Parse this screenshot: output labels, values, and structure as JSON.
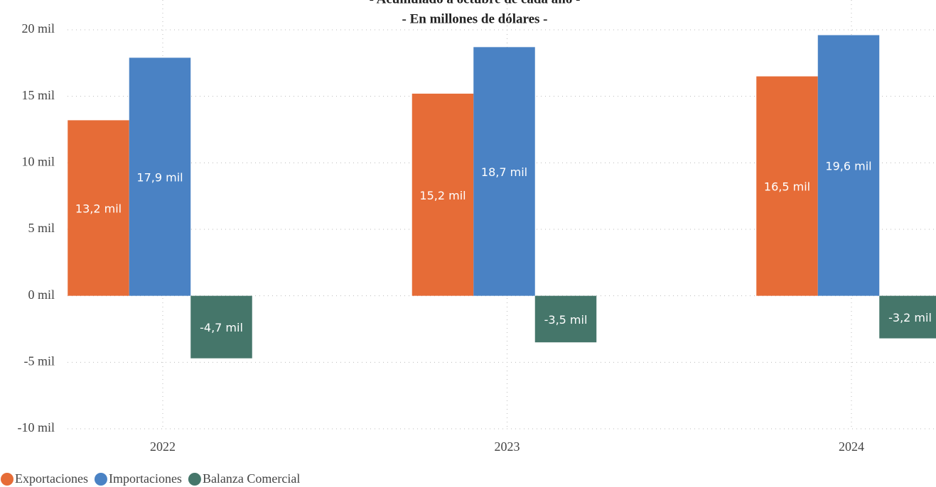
{
  "chart_data": {
    "type": "bar",
    "title": "- Acumulado a octubre de cada año -",
    "subtitle": "- En millones de dólares -",
    "categories": [
      "2022",
      "2023",
      "2024"
    ],
    "series": [
      {
        "name": "Exportaciones",
        "color": "#E66C37",
        "values": [
          13200,
          15200,
          16500
        ],
        "value_labels": [
          "13,2 mil",
          "15,2 mil",
          "16,5 mil"
        ]
      },
      {
        "name": "Importaciones",
        "color": "#4A82C4",
        "values": [
          17900,
          18700,
          19600
        ],
        "value_labels": [
          "17,9 mil",
          "18,7 mil",
          "19,6 mil"
        ]
      },
      {
        "name": "Balanza Comercial",
        "color": "#45766A",
        "values": [
          -4700,
          -3500,
          -3200
        ],
        "value_labels": [
          "-4,7 mil",
          "-3,5 mil",
          "-3,2 mil"
        ]
      }
    ],
    "ylim": [
      -10000,
      20000
    ],
    "yticks": [
      {
        "value": -10000,
        "label": "-10 mil"
      },
      {
        "value": -5000,
        "label": "-5 mil"
      },
      {
        "value": 0,
        "label": "0 mil"
      },
      {
        "value": 5000,
        "label": "5 mil"
      },
      {
        "value": 10000,
        "label": "10 mil"
      },
      {
        "value": 15000,
        "label": "15 mil"
      },
      {
        "value": 20000,
        "label": "20 mil"
      }
    ],
    "grid": true,
    "legend": "bottom-left"
  }
}
